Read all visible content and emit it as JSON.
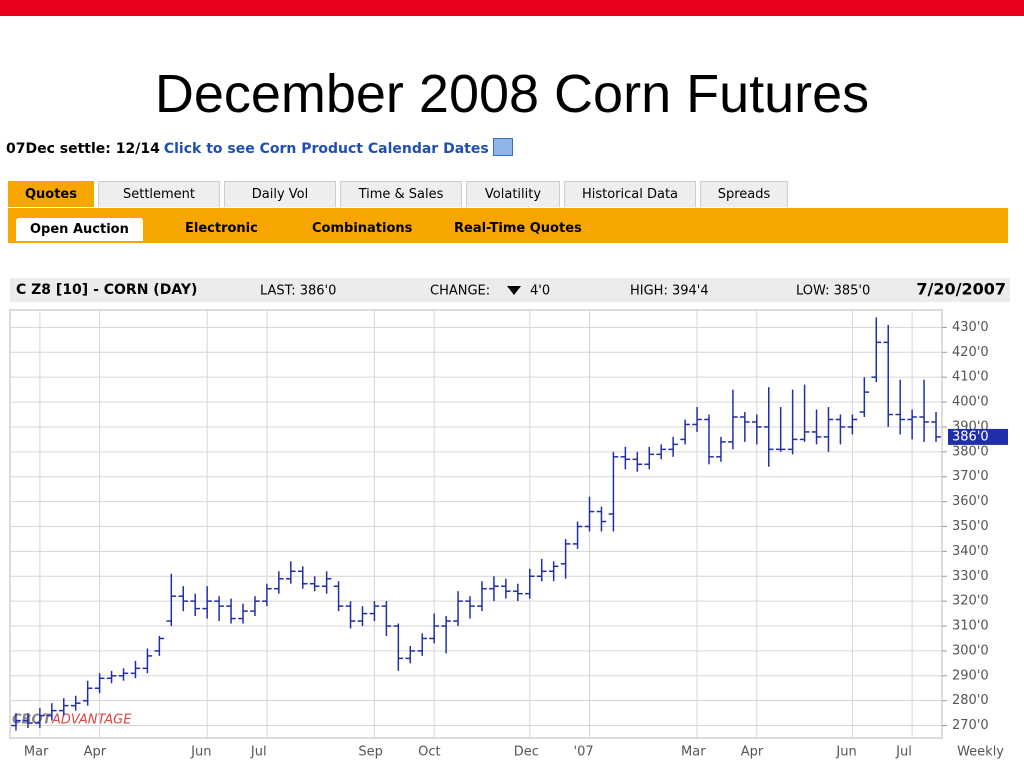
{
  "slide_title": "December 2008 Corn Futures",
  "info_bar": {
    "settle": "07Dec settle: 12/14",
    "link": "Click to see Corn Product Calendar Dates"
  },
  "tabs": [
    "Quotes",
    "Settlement",
    "Daily Vol",
    "Time & Sales",
    "Volatility",
    "Historical Data",
    "Spreads"
  ],
  "subtabs": [
    "Open Auction",
    "Electronic",
    "Combinations",
    "Real-Time Quotes"
  ],
  "chart_header": {
    "symbol": "C Z8 [10] - CORN (DAY)",
    "last": "LAST: 386'0",
    "change_label": "CHANGE:",
    "change": "4'0",
    "high": "HIGH: 394'4",
    "low": "LOW: 385'0",
    "date": "7/20/2007"
  },
  "watermark": {
    "brand": "CBOT",
    "product": "ADVANTAGE"
  },
  "chart_data": {
    "type": "ohlc",
    "color": "#1f2fa8",
    "grid": true,
    "x_axis_note": "Weekly",
    "last_price": {
      "value": 386,
      "label": "386'0"
    },
    "categories": [
      null,
      null,
      "Mar",
      null,
      null,
      null,
      null,
      "Apr",
      null,
      null,
      null,
      null,
      null,
      null,
      null,
      null,
      "Jun",
      null,
      null,
      null,
      null,
      "Jul",
      null,
      null,
      null,
      null,
      null,
      null,
      null,
      null,
      "Sep",
      null,
      null,
      null,
      null,
      "Oct",
      null,
      null,
      null,
      null,
      null,
      null,
      null,
      "Dec",
      null,
      null,
      null,
      null,
      "'07",
      null,
      null,
      null,
      null,
      null,
      null,
      null,
      null,
      "Mar",
      null,
      null,
      null,
      null,
      "Apr",
      null,
      null,
      null,
      null,
      null,
      null,
      null,
      "Jun",
      null,
      null,
      null,
      null,
      "Jul",
      null,
      null
    ],
    "open": [
      270,
      272,
      271,
      274,
      276,
      278,
      280,
      285,
      289,
      290,
      291,
      293,
      300,
      312,
      322,
      320,
      317,
      320,
      318,
      313,
      316,
      320,
      325,
      329,
      332,
      327,
      326,
      326,
      318,
      312,
      315,
      318,
      310,
      297,
      300,
      305,
      310,
      312,
      320,
      318,
      325,
      326,
      324,
      323,
      330,
      332,
      335,
      343,
      350,
      356,
      355,
      378,
      377,
      375,
      379,
      381,
      385,
      391,
      393,
      378,
      384,
      394,
      392,
      390,
      381,
      381,
      385,
      388,
      386,
      393,
      390,
      396,
      410,
      424,
      395,
      393,
      394,
      392
    ],
    "high": [
      275,
      275,
      277,
      279,
      281,
      282,
      288,
      291,
      292,
      293,
      296,
      301,
      306,
      331,
      326,
      323,
      326,
      322,
      321,
      319,
      322,
      327,
      332,
      336,
      334,
      330,
      332,
      328,
      320,
      318,
      320,
      320,
      311,
      302,
      307,
      315,
      314,
      324,
      322,
      328,
      330,
      329,
      327,
      333,
      337,
      336,
      345,
      352,
      362,
      358,
      380,
      382,
      380,
      382,
      383,
      386,
      393,
      398,
      395,
      386,
      405,
      396,
      395,
      406,
      398,
      405,
      407,
      397,
      398,
      395,
      395,
      410,
      434,
      431,
      409,
      397,
      409,
      396
    ],
    "low": [
      268,
      269,
      269,
      272,
      274,
      276,
      278,
      283,
      287,
      288,
      289,
      291,
      298,
      310,
      316,
      314,
      313,
      312,
      311,
      311,
      314,
      318,
      323,
      327,
      325,
      324,
      323,
      316,
      309,
      310,
      312,
      306,
      292,
      295,
      298,
      303,
      299,
      310,
      313,
      316,
      320,
      321,
      320,
      321,
      328,
      328,
      329,
      341,
      348,
      348,
      348,
      373,
      372,
      373,
      377,
      378,
      383,
      388,
      375,
      376,
      381,
      384,
      383,
      374,
      380,
      379,
      384,
      383,
      380,
      383,
      387,
      394,
      408,
      390,
      387,
      385,
      384,
      384
    ],
    "close": [
      272,
      271,
      274,
      276,
      278,
      279,
      285,
      289,
      290,
      291,
      293,
      298,
      305,
      322,
      320,
      317,
      320,
      318,
      313,
      316,
      320,
      325,
      329,
      332,
      327,
      326,
      329,
      318,
      312,
      315,
      318,
      310,
      297,
      300,
      305,
      310,
      312,
      320,
      318,
      325,
      326,
      324,
      323,
      330,
      332,
      334,
      343,
      350,
      356,
      352,
      378,
      377,
      375,
      379,
      381,
      383,
      391,
      393,
      378,
      384,
      394,
      392,
      390,
      381,
      381,
      385,
      388,
      386,
      393,
      390,
      393,
      404,
      424,
      395,
      393,
      394,
      392,
      386
    ],
    "ylim": [
      265,
      437
    ],
    "yticks": [
      {
        "value": 270,
        "label": "270'0"
      },
      {
        "value": 280,
        "label": "280'0"
      },
      {
        "value": 290,
        "label": "290'0"
      },
      {
        "value": 300,
        "label": "300'0"
      },
      {
        "value": 310,
        "label": "310'0"
      },
      {
        "value": 320,
        "label": "320'0"
      },
      {
        "value": 330,
        "label": "330'0"
      },
      {
        "value": 340,
        "label": "340'0"
      },
      {
        "value": 350,
        "label": "350'0"
      },
      {
        "value": 360,
        "label": "360'0"
      },
      {
        "value": 370,
        "label": "370'0"
      },
      {
        "value": 380,
        "label": "380'0"
      },
      {
        "value": 390,
        "label": "390'0"
      },
      {
        "value": 400,
        "label": "400'0"
      },
      {
        "value": 410,
        "label": "410'0"
      },
      {
        "value": 420,
        "label": "420'0"
      },
      {
        "value": 430,
        "label": "430'0"
      }
    ]
  }
}
